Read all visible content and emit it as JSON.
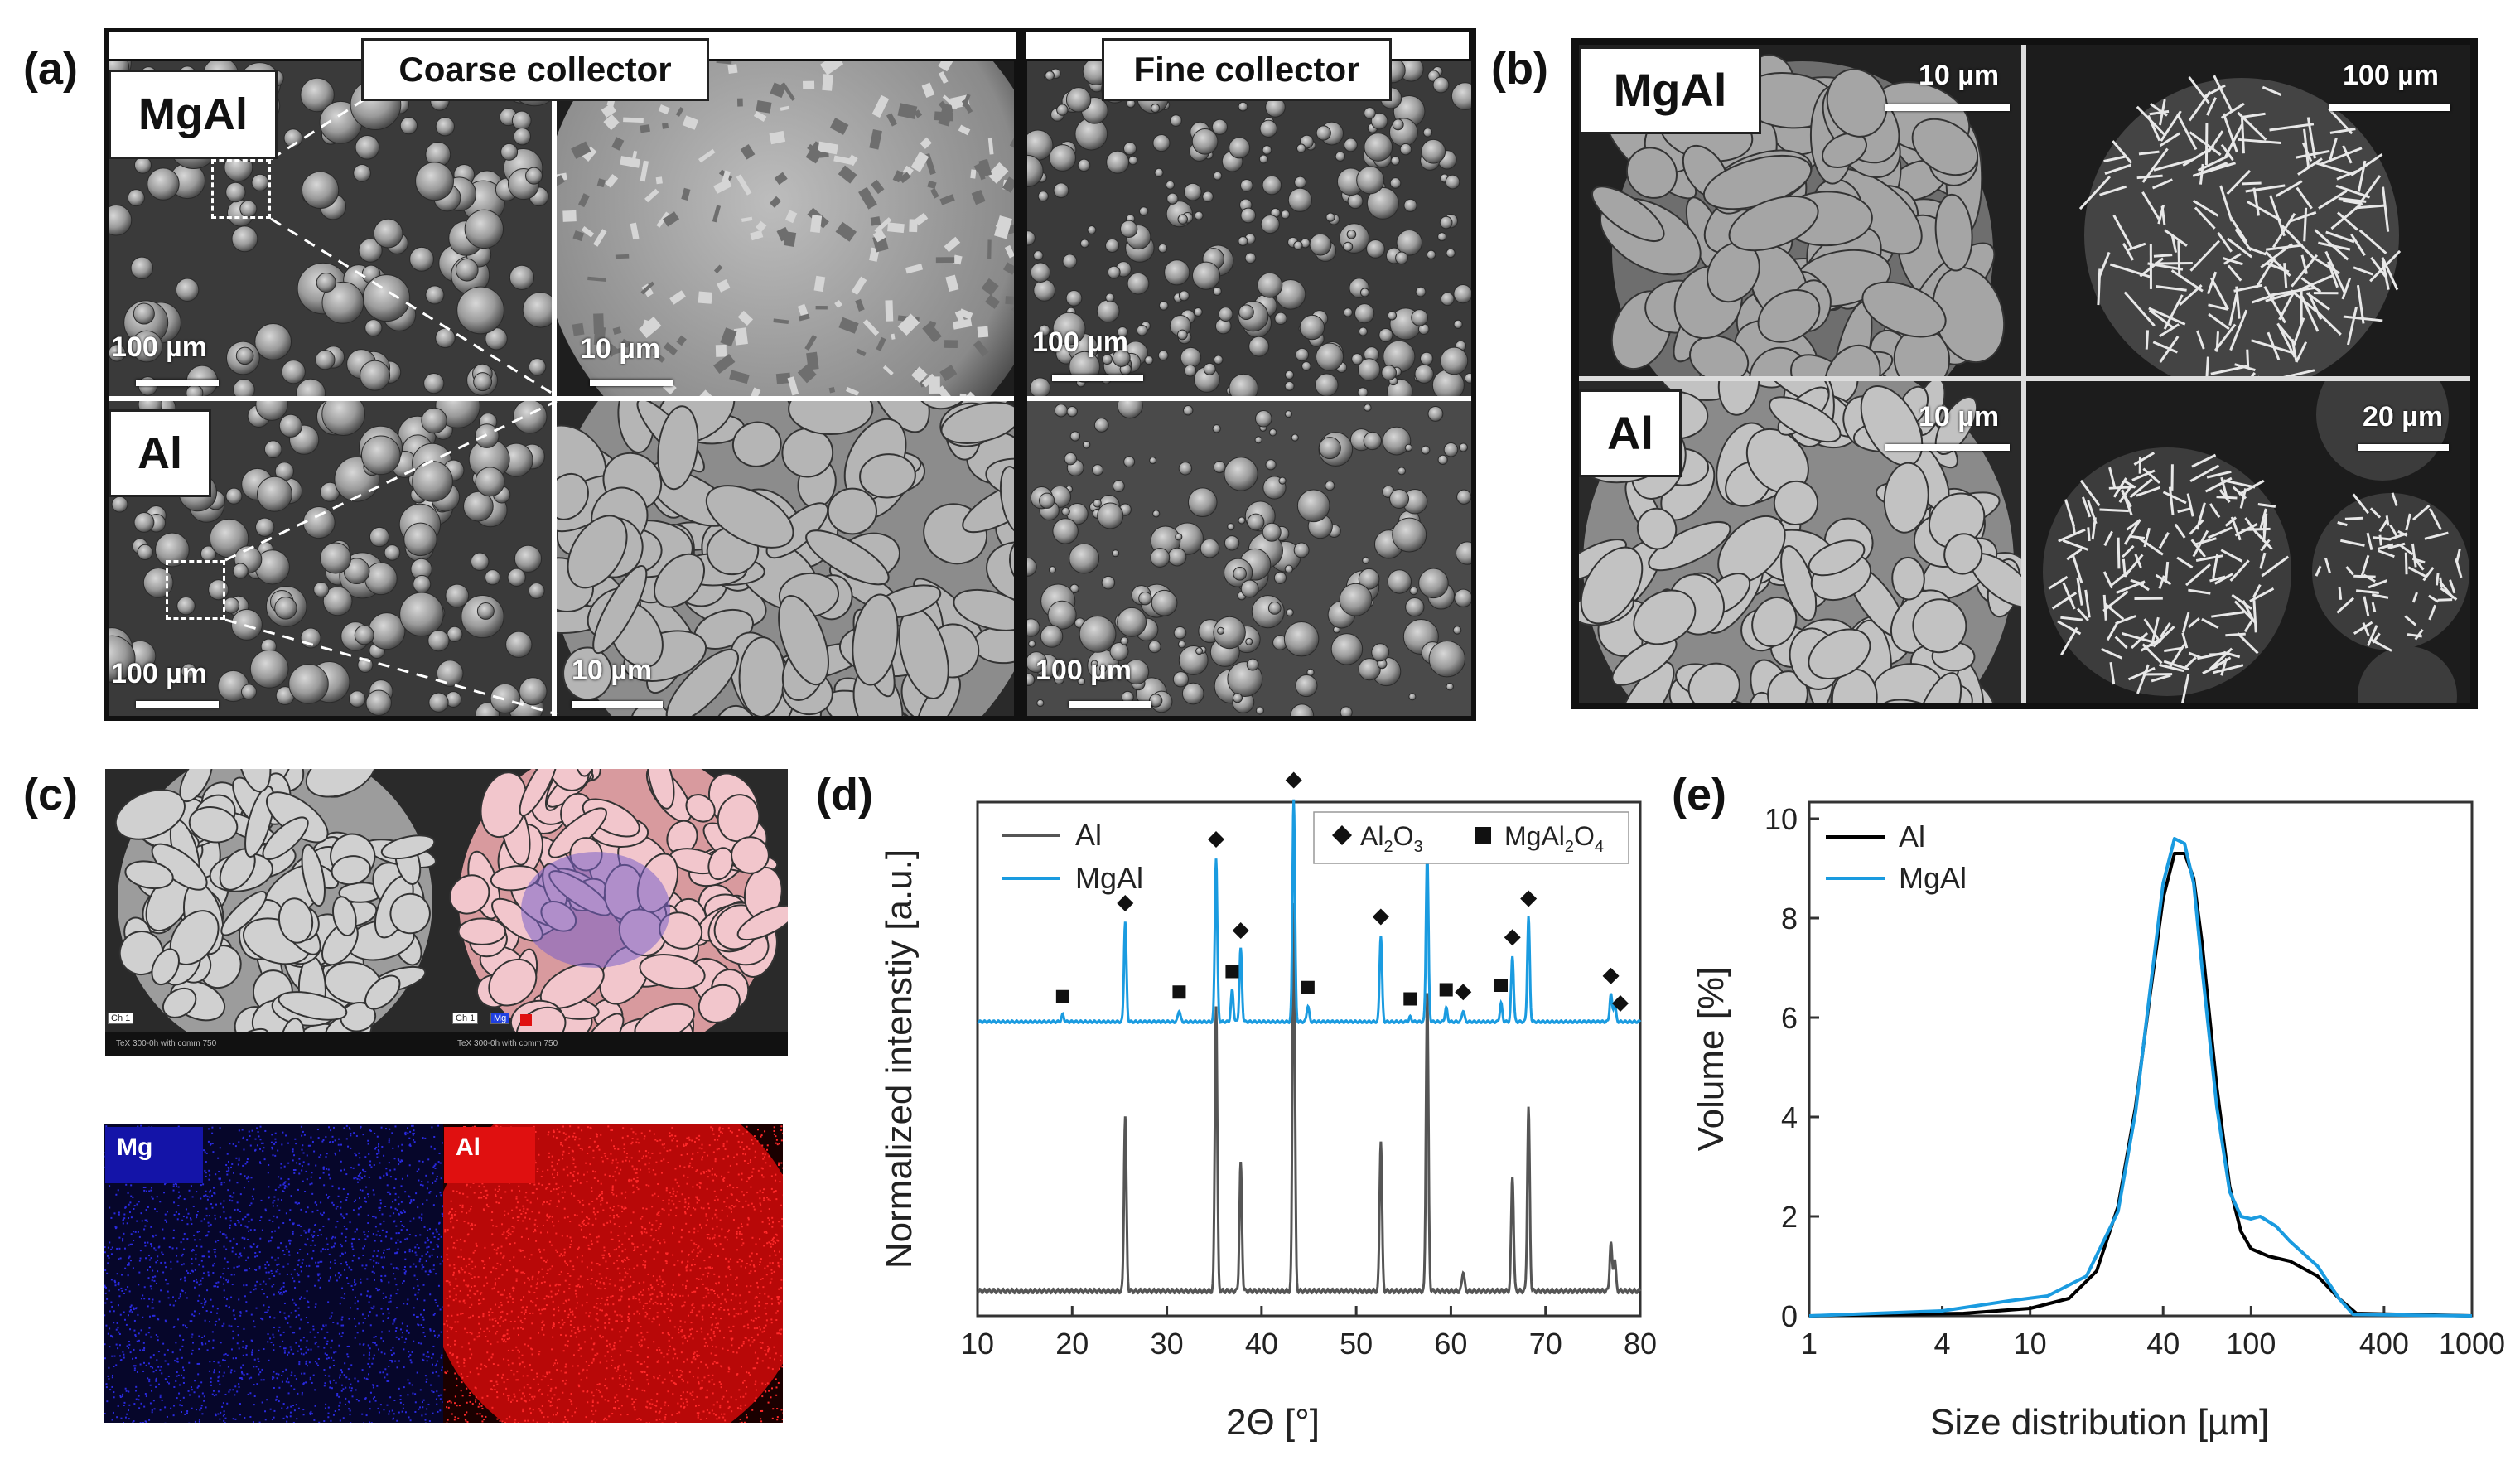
{
  "panels": {
    "a": "(a)",
    "b": "(b)",
    "c": "(c)",
    "d": "(d)",
    "e": "(e)"
  },
  "panel_a": {
    "coarse_title": "Coarse collector",
    "fine_title": "Fine collector",
    "row_labels": [
      "MgAl",
      "Al"
    ],
    "scale_100": "100 µm",
    "scale_10": "10 µm"
  },
  "panel_b": {
    "row_labels": [
      "MgAl",
      "Al"
    ],
    "scales": [
      "10 µm",
      "100 µm",
      "10 µm",
      "20 µm"
    ]
  },
  "panel_c": {
    "map_labels": [
      "Mg",
      "Al"
    ],
    "overlay_tag": "Ch 1",
    "overlay_tag_mg": "Mg",
    "footer_text": "TeX 300-0h with comm 750"
  },
  "colors": {
    "al_xrd": "#555555",
    "mgal_xrd": "#1a9be0",
    "al_psd": "#000000",
    "mgal_psd": "#1a9be0",
    "mg_map": "#1f1fd0",
    "al_map": "#e01010"
  },
  "chart_data": [
    {
      "id": "d",
      "type": "line",
      "xlabel": "2Θ [°]",
      "ylabel": "Normalized intenstiy [a.u.]",
      "xlim": [
        10,
        80
      ],
      "xticks": [
        10,
        20,
        30,
        40,
        50,
        60,
        70,
        80
      ],
      "series": [
        {
          "name": "Al",
          "peaks": [
            [
              25.6,
              0.44
            ],
            [
              35.2,
              0.72
            ],
            [
              37.8,
              0.32
            ],
            [
              43.4,
              0.98
            ],
            [
              52.6,
              0.38
            ],
            [
              57.5,
              0.75
            ],
            [
              61.3,
              0.05
            ],
            [
              66.5,
              0.29
            ],
            [
              68.2,
              0.46
            ],
            [
              76.9,
              0.12
            ],
            [
              77.3,
              0.08
            ]
          ]
        },
        {
          "name": "MgAl",
          "peaks": [
            [
              19.0,
              0.03
            ],
            [
              25.6,
              0.44
            ],
            [
              31.3,
              0.05
            ],
            [
              35.2,
              0.72
            ],
            [
              36.9,
              0.14
            ],
            [
              37.8,
              0.32
            ],
            [
              43.4,
              0.98
            ],
            [
              44.9,
              0.07
            ],
            [
              52.6,
              0.38
            ],
            [
              55.7,
              0.02
            ],
            [
              57.5,
              0.75
            ],
            [
              59.5,
              0.06
            ],
            [
              61.3,
              0.05
            ],
            [
              65.3,
              0.08
            ],
            [
              66.5,
              0.29
            ],
            [
              68.2,
              0.46
            ],
            [
              76.9,
              0.12
            ],
            [
              77.3,
              0.08
            ]
          ]
        }
      ],
      "legend": {
        "entries": [
          "Al",
          "MgAl"
        ],
        "markers": [
          {
            "symbol": "diamond",
            "label_main": "Al",
            "sub1": "2",
            "label_mid": "O",
            "sub2": "3"
          },
          {
            "symbol": "square",
            "label_main": "MgAl",
            "sub1": "2",
            "label_mid": "O",
            "sub2": "4"
          }
        ]
      },
      "diamond_markers": [
        25.6,
        35.2,
        37.8,
        43.4,
        52.6,
        57.5,
        61.3,
        66.5,
        68.2,
        76.9,
        77.9
      ],
      "square_markers": [
        19.0,
        31.3,
        36.9,
        44.9,
        55.7,
        59.5,
        65.3
      ]
    },
    {
      "id": "e",
      "type": "line",
      "xlabel": "Size distribution [µm]",
      "ylabel": "Volume [%]",
      "xscale": "log",
      "xlim": [
        1,
        1000
      ],
      "ylim": [
        0,
        10
      ],
      "xticks": [
        1,
        4,
        10,
        40,
        100,
        400,
        1000
      ],
      "yticks": [
        0,
        2,
        4,
        6,
        8,
        10
      ],
      "series": [
        {
          "name": "Al",
          "x": [
            1,
            5,
            10,
            15,
            20,
            25,
            30,
            35,
            40,
            45,
            50,
            55,
            60,
            70,
            80,
            90,
            100,
            120,
            150,
            200,
            250,
            300,
            1000
          ],
          "y": [
            0,
            0.05,
            0.15,
            0.35,
            0.9,
            2.2,
            4.2,
            6.5,
            8.4,
            9.3,
            9.3,
            8.8,
            7.5,
            4.6,
            2.6,
            1.7,
            1.35,
            1.2,
            1.1,
            0.8,
            0.35,
            0.05,
            0
          ]
        },
        {
          "name": "MgAl",
          "x": [
            1,
            4,
            8,
            12,
            18,
            25,
            30,
            35,
            40,
            45,
            50,
            55,
            60,
            70,
            80,
            90,
            100,
            110,
            130,
            150,
            200,
            250,
            290,
            1000
          ],
          "y": [
            0,
            0.1,
            0.3,
            0.4,
            0.8,
            2.1,
            4.1,
            6.6,
            8.7,
            9.6,
            9.5,
            8.7,
            7.0,
            4.2,
            2.5,
            2.0,
            1.95,
            2.0,
            1.8,
            1.5,
            1.0,
            0.35,
            0.03,
            0
          ]
        }
      ]
    }
  ]
}
